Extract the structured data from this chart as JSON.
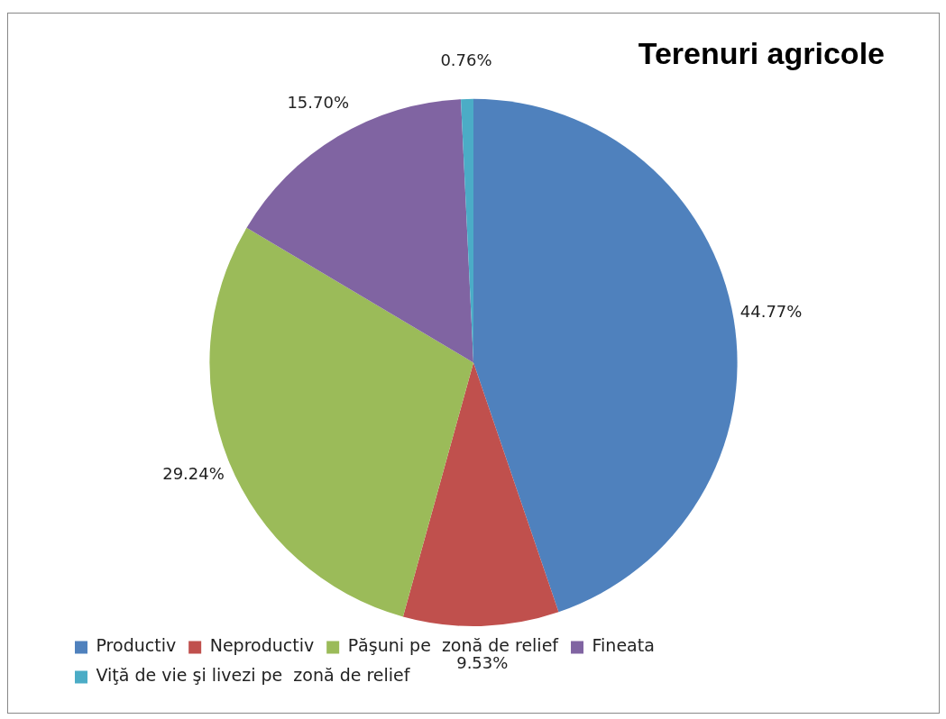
{
  "chart_data": {
    "type": "pie",
    "title": "Terenuri agricole",
    "categories": [
      "Productiv",
      "Neproductiv",
      "Păşuni pe  zonă de relief",
      "Fineata",
      "Viţă de vie şi livezi pe  zonă de relief"
    ],
    "values": [
      44.77,
      9.53,
      29.24,
      15.7,
      0.76
    ],
    "colors": [
      "#4f81bd",
      "#c0504d",
      "#9bbb59",
      "#8064a2",
      "#4bacc6"
    ],
    "value_labels": [
      "44.77%",
      "9.53%",
      "29.24%",
      "15.70%",
      "0.76%"
    ],
    "legend": "bottom"
  }
}
